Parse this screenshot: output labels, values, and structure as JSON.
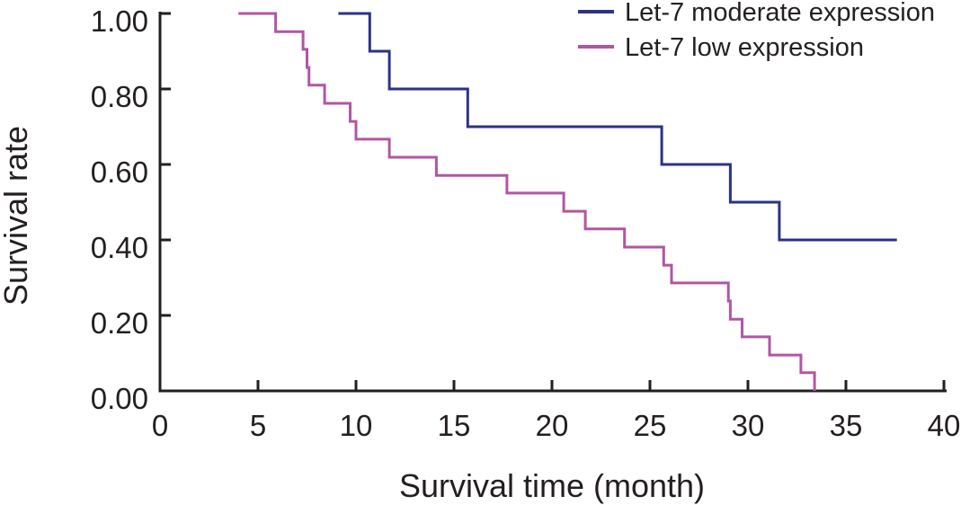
{
  "figure": {
    "background": "#ffffff",
    "axis_color": "#231f20"
  },
  "chart_data": {
    "type": "line",
    "subtype": "kaplan-meier-step",
    "title": "",
    "xlabel": "Survival time (month)",
    "ylabel": "Survival rate",
    "xlim": [
      0,
      40
    ],
    "ylim": [
      0.0,
      1.0
    ],
    "grid": false,
    "legend_position": "top-right",
    "xticks": [
      0,
      5,
      10,
      15,
      20,
      25,
      30,
      35,
      40
    ],
    "xtick_labels": [
      "0",
      "5",
      "10",
      "15",
      "20",
      "25",
      "30",
      "35",
      "40"
    ],
    "yticks": [
      0.0,
      0.2,
      0.4,
      0.6,
      0.8,
      1.0
    ],
    "ytick_labels": [
      "0.00",
      "0.20",
      "0.40",
      "0.60",
      "0.80",
      "1.00"
    ],
    "series": [
      {
        "name": "Let-7 moderate expression",
        "color": "#2b3389",
        "points": [
          [
            9.1,
            1.0
          ],
          [
            10.7,
            1.0
          ],
          [
            10.7,
            0.9
          ],
          [
            11.7,
            0.9
          ],
          [
            11.7,
            0.8
          ],
          [
            15.7,
            0.8
          ],
          [
            15.7,
            0.7
          ],
          [
            25.6,
            0.7
          ],
          [
            25.6,
            0.6
          ],
          [
            29.1,
            0.6
          ],
          [
            29.1,
            0.5
          ],
          [
            31.6,
            0.5
          ],
          [
            31.6,
            0.4
          ],
          [
            37.6,
            0.4
          ]
        ]
      },
      {
        "name": "Let-7 low expression",
        "color": "#b156a3",
        "points": [
          [
            4.0,
            1.0
          ],
          [
            5.9,
            1.0
          ],
          [
            5.9,
            0.952
          ],
          [
            7.3,
            0.952
          ],
          [
            7.3,
            0.905
          ],
          [
            7.5,
            0.905
          ],
          [
            7.5,
            0.857
          ],
          [
            7.6,
            0.857
          ],
          [
            7.6,
            0.81
          ],
          [
            8.4,
            0.81
          ],
          [
            8.4,
            0.762
          ],
          [
            9.7,
            0.762
          ],
          [
            9.7,
            0.714
          ],
          [
            10.0,
            0.714
          ],
          [
            10.0,
            0.667
          ],
          [
            11.7,
            0.667
          ],
          [
            11.7,
            0.619
          ],
          [
            14.1,
            0.619
          ],
          [
            14.1,
            0.571
          ],
          [
            17.7,
            0.571
          ],
          [
            17.7,
            0.524
          ],
          [
            20.6,
            0.524
          ],
          [
            20.6,
            0.476
          ],
          [
            21.7,
            0.476
          ],
          [
            21.7,
            0.429
          ],
          [
            23.7,
            0.429
          ],
          [
            23.7,
            0.381
          ],
          [
            25.7,
            0.381
          ],
          [
            25.7,
            0.333
          ],
          [
            26.1,
            0.333
          ],
          [
            26.1,
            0.286
          ],
          [
            29.0,
            0.286
          ],
          [
            29.0,
            0.238
          ],
          [
            29.1,
            0.238
          ],
          [
            29.1,
            0.19
          ],
          [
            29.7,
            0.19
          ],
          [
            29.7,
            0.143
          ],
          [
            31.1,
            0.143
          ],
          [
            31.1,
            0.095
          ],
          [
            32.7,
            0.095
          ],
          [
            32.7,
            0.048
          ],
          [
            33.4,
            0.048
          ],
          [
            33.4,
            0.0
          ]
        ]
      }
    ]
  }
}
